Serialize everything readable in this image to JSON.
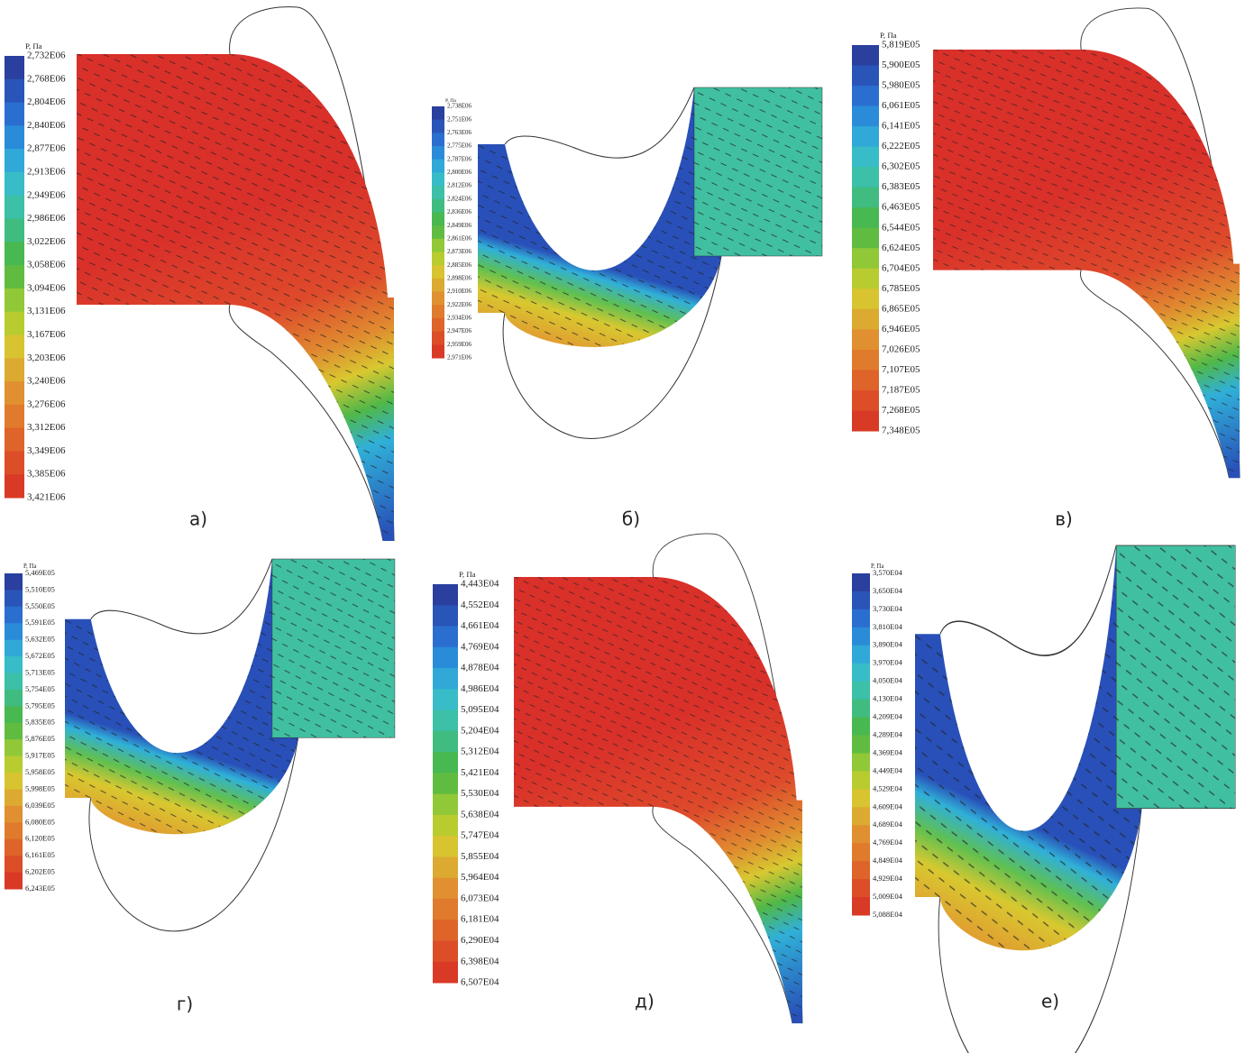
{
  "panels": [
    {
      "caption": "а)",
      "legend_title": "P, Па",
      "legend_labels": [
        "2,732E06",
        "2,768E06",
        "2,804E06",
        "2,840E06",
        "2,877E06",
        "2,913E06",
        "2,949E06",
        "2,986E06",
        "3,022E06",
        "3,058E06",
        "3,094E06",
        "3,131E06",
        "3,167E06",
        "3,203E06",
        "3,240E06",
        "3,276E06",
        "3,312E06",
        "3,349E06",
        "3,385E06",
        "3,421E06"
      ]
    },
    {
      "caption": "б)",
      "legend_title": "P, Па",
      "legend_labels": [
        "2,738E06",
        "2,751E06",
        "2,763E06",
        "2,775E06",
        "2,787E06",
        "2,800E06",
        "2,812E06",
        "2,824E06",
        "2,836E06",
        "2,849E06",
        "2,861E06",
        "2,873E06",
        "2,885E06",
        "2,898E06",
        "2,910E06",
        "2,922E06",
        "2,934E06",
        "2,947E06",
        "2,959E06",
        "2,971E06"
      ]
    },
    {
      "caption": "в)",
      "legend_title": "P, Па",
      "legend_labels": [
        "5,819E05",
        "5,900E05",
        "5,980E05",
        "6,061E05",
        "6,141E05",
        "6,222E05",
        "6,302E05",
        "6,383E05",
        "6,463E05",
        "6,544E05",
        "6,624E05",
        "6,704E05",
        "6,785E05",
        "6,865E05",
        "6,946E05",
        "7,026E05",
        "7,107E05",
        "7,187E05",
        "7,268E05",
        "7,348E05"
      ]
    },
    {
      "caption": "г)",
      "legend_title": "P, Па",
      "legend_labels": [
        "5,469E05",
        "5,510E05",
        "5,550E05",
        "5,591E05",
        "5,632E05",
        "5,672E05",
        "5,713E05",
        "5,754E05",
        "5,795E05",
        "5,835E05",
        "5,876E05",
        "5,917E05",
        "5,958E05",
        "5,998E05",
        "6,039E05",
        "6,080E05",
        "6,120E05",
        "6,161E05",
        "6,202E05",
        "6,243E05"
      ]
    },
    {
      "caption": "д)",
      "legend_title": "P, Па",
      "legend_labels": [
        "4,443E04",
        "4,552E04",
        "4,661E04",
        "4,769E04",
        "4,878E04",
        "4,986E04",
        "5,095E04",
        "5,204E04",
        "5,312E04",
        "5,421E04",
        "5,530E04",
        "5,638E04",
        "5,747E04",
        "5,855E04",
        "5,964E04",
        "6,073E04",
        "6,181E04",
        "6,290E04",
        "6,398E04",
        "6,507E04"
      ]
    },
    {
      "caption": "е)",
      "legend_title": "P, Па",
      "legend_labels": [
        "3,570E04",
        "3,650E04",
        "3,730E04",
        "3,810E04",
        "3,890E04",
        "3,970E04",
        "4,050E04",
        "4,130E04",
        "4,209E04",
        "4,289E04",
        "4,369E04",
        "4,449E04",
        "4,529E04",
        "4,609E04",
        "4,689E04",
        "4,769E04",
        "4,849E04",
        "4,929E04",
        "5,009E04",
        "5,088E04"
      ]
    }
  ]
}
